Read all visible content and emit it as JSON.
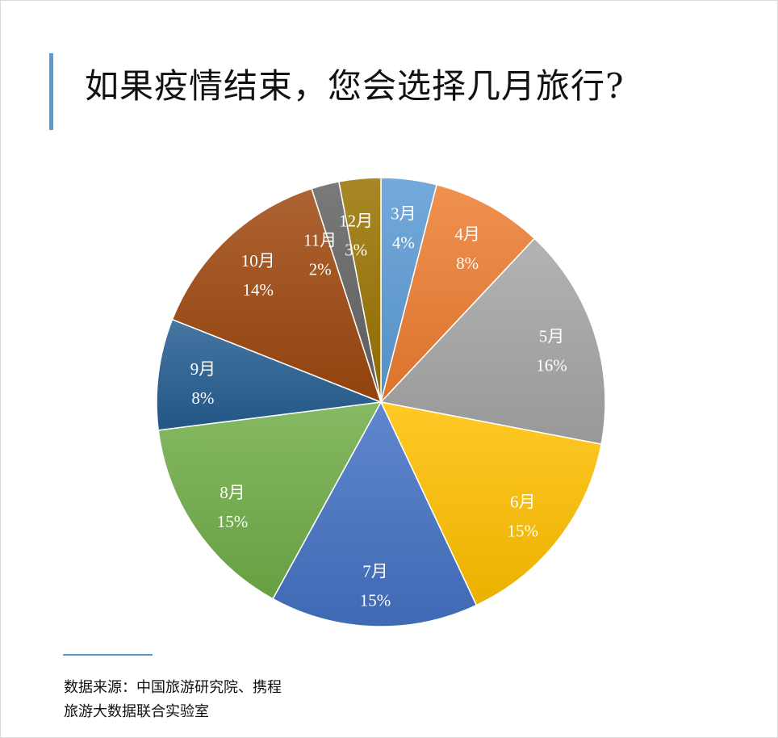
{
  "chart_data": {
    "type": "pie",
    "title": "如果疫情结束，您会选择几月旅行?",
    "categories": [
      "3月",
      "4月",
      "5月",
      "6月",
      "7月",
      "8月",
      "9月",
      "10月",
      "11月",
      "12月"
    ],
    "values": [
      4,
      8,
      16,
      15,
      15,
      15,
      8,
      14,
      2,
      3
    ],
    "labels": [
      "4%",
      "8%",
      "16%",
      "15%",
      "15%",
      "15%",
      "8%",
      "14%",
      "2%",
      "3%"
    ],
    "colors": [
      "#5b9bd5",
      "#ed7d31",
      "#a5a5a5",
      "#ffc000",
      "#4472c4",
      "#70ad47",
      "#255e91",
      "#9e480e",
      "#636363",
      "#997300"
    ],
    "start": "top, clockwise",
    "legend": "none"
  },
  "source": {
    "line1": "数据来源：中国旅游研究院、携程",
    "line2": "旅游大数据联合实验室"
  },
  "accent_color": "#5b9bd5"
}
